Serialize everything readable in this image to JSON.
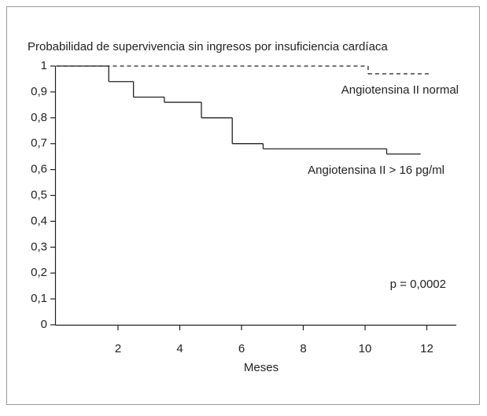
{
  "chart_data": {
    "type": "line",
    "step": "post",
    "title": "Probabilidad de supervivencia sin ingresos por insuficiencia cardíaca",
    "xlabel": "Meses",
    "xlim": [
      0,
      13
    ],
    "xticks": [
      2,
      4,
      6,
      8,
      10,
      12
    ],
    "ylim": [
      0,
      1
    ],
    "yticks": [
      0,
      {
        "value": 0.1,
        "label": "0,1"
      },
      {
        "value": 0.2,
        "label": "0,2"
      },
      {
        "value": 0.3,
        "label": "0,3"
      },
      {
        "value": 0.4,
        "label": "0,4"
      },
      {
        "value": 0.5,
        "label": "0,5"
      },
      {
        "value": 0.6,
        "label": "0,6"
      },
      {
        "value": 0.7,
        "label": "0,7"
      },
      {
        "value": 0.8,
        "label": "0,8"
      },
      {
        "value": 0.9,
        "label": "0,9"
      },
      1
    ],
    "grid": false,
    "annotation": "p = 0,0002",
    "series": [
      {
        "name": "Angiotensina II normal",
        "color": "#222222",
        "dash": true,
        "x": [
          0,
          10.1,
          12.1
        ],
        "values": [
          1,
          0.97,
          0.97
        ]
      },
      {
        "name": "Angiotensina II > 16 pg/ml",
        "color": "#222222",
        "dash": false,
        "x": [
          0,
          1.7,
          2.5,
          3.5,
          4.7,
          5.7,
          6.7,
          10.7,
          11.8
        ],
        "values": [
          1,
          0.94,
          0.88,
          0.86,
          0.8,
          0.7,
          0.68,
          0.66,
          0.66
        ]
      }
    ]
  }
}
